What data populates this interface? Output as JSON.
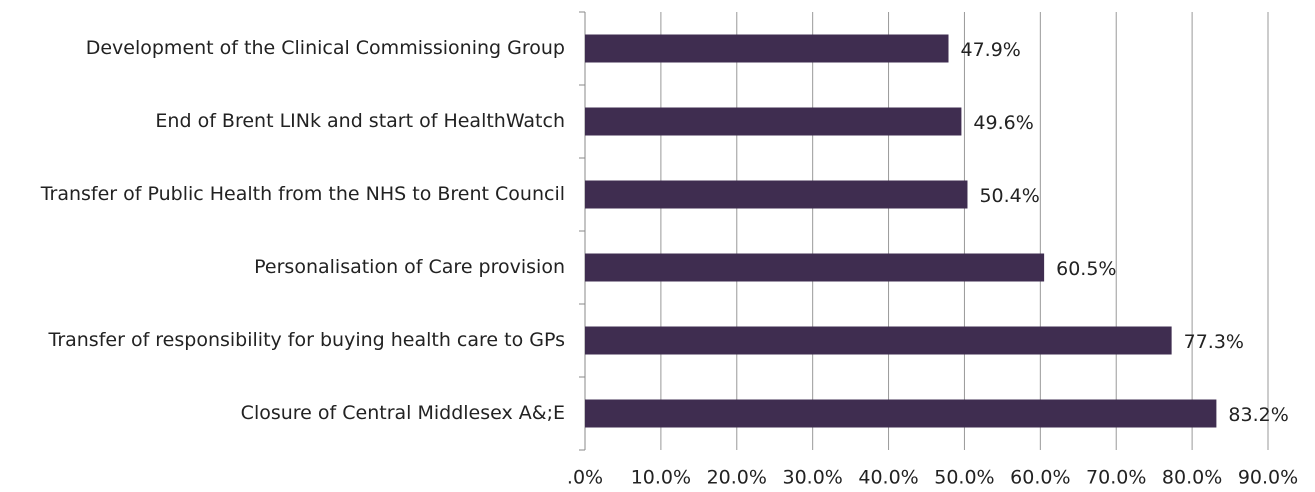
{
  "chart_data": {
    "type": "bar",
    "orientation": "horizontal",
    "categories": [
      "Development of the Clinical Commissioning Group",
      "End of Brent LINk and start of HealthWatch",
      "Transfer of Public Health from the NHS  to Brent Council",
      "Personalisation of Care provision",
      "Transfer of responsibility for buying health care to GPs",
      "Closure of Central Middlesex A&;E"
    ],
    "values": [
      47.9,
      49.6,
      50.4,
      60.5,
      77.3,
      83.2
    ],
    "value_labels": [
      "47.9%",
      "49.6%",
      "50.4%",
      "60.5%",
      "77.3%",
      "83.2%"
    ],
    "color": "#3f2d50",
    "xlim": [
      0,
      90
    ],
    "xticks": [
      {
        "value": 0,
        "label": ".0%"
      },
      {
        "value": 10,
        "label": "10.0%"
      },
      {
        "value": 20,
        "label": "20.0%"
      },
      {
        "value": 30,
        "label": "30.0%"
      },
      {
        "value": 40,
        "label": "40.0%"
      },
      {
        "value": 50,
        "label": "50.0%"
      },
      {
        "value": 60,
        "label": "60.0%"
      },
      {
        "value": 70,
        "label": "70.0%"
      },
      {
        "value": 80,
        "label": "80.0%"
      },
      {
        "value": 90,
        "label": "90.0%"
      }
    ],
    "grid": true
  }
}
